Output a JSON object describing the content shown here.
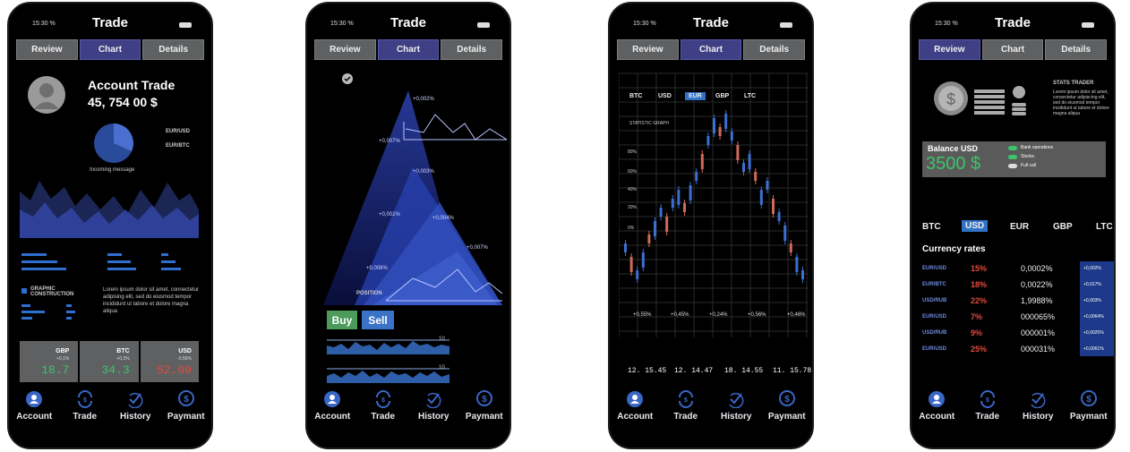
{
  "phones": [
    {
      "time": "15:30 %",
      "title": "Trade",
      "tabs": [
        "Review",
        "Chart",
        "Details"
      ],
      "account_title": "Account Trade",
      "account_value": "45, 754 00 $",
      "pairs": [
        "EUR/USD",
        "EUR/BTC"
      ],
      "incoming": "Incoming message",
      "graphic_label": "GRAPHIC CONSTRUCTION",
      "lorem": "Lorem ipsum dolor sit amet, connectetur adipising elit, sed do eiusmod tempor incididunt ut labore et dolore magna aliqua",
      "tickers": [
        {
          "name": "GBP",
          "change": "+0,1%",
          "value": "18.7",
          "color": "#3cc46a"
        },
        {
          "name": "BTC",
          "change": "+0,3%",
          "value": "34.3",
          "color": "#3cc46a"
        },
        {
          "name": "USD",
          "change": "-0,56%",
          "value": "52.00",
          "color": "#e24a3e"
        }
      ]
    },
    {
      "time": "15:30 %",
      "title": "Trade",
      "tabs": [
        "Review",
        "Chart",
        "Details"
      ],
      "peak_labels": [
        "+0,002%",
        "+0,007%",
        "+0,003%",
        "+0,002%",
        "+0,004%",
        "+0,007%",
        "+0,008%"
      ],
      "position_label": "POSITION",
      "buy": "Buy",
      "sell": "Sell",
      "mini_labels": [
        "10",
        "10"
      ]
    },
    {
      "time": "15:30 %",
      "title": "Trade",
      "tabs": [
        "Review",
        "Chart",
        "Details"
      ],
      "currencies": [
        "BTC",
        "USD",
        "EUR",
        "GBP",
        "LTC"
      ],
      "stat_label": "STATISTIC GRAPH",
      "y_labels": [
        "80%",
        "60%",
        "40%",
        "20%",
        "0%"
      ],
      "percents": [
        "+0,55%",
        "+0,45%",
        "+0,24%",
        "+0,56%",
        "+0,46%"
      ],
      "dates": [
        "12. 15.45",
        "12. 14.47",
        "18. 14.55",
        "11. 15.78"
      ]
    },
    {
      "time": "15:30 %",
      "title": "Trade",
      "tabs": [
        "Review",
        "Chart",
        "Details"
      ],
      "stats_trader": "STATS TRADER",
      "stats_text": "Lorem ipsum dolor sit amet, consectetur adipiscing elit, sed do eiusmod tempor incididunt ut labore et dolore magna aliqua",
      "balance_label": "Balance USD",
      "balance_value": "3500 $",
      "toggles": [
        "Bank operations",
        "Stocks",
        "Full call"
      ],
      "currencies": [
        "BTC",
        "USD",
        "EUR",
        "GBP",
        "LTC"
      ],
      "rates_title": "Currency rates",
      "rates": [
        {
          "pair": "EUR/USD",
          "pct": "15%",
          "value": "0,0002%",
          "change": "+0,002%"
        },
        {
          "pair": "EUR/BTC",
          "pct": "18%",
          "value": "0,0022%",
          "change": "+0,017%"
        },
        {
          "pair": "USD/RUB",
          "pct": "22%",
          "value": "1,9988%",
          "change": "+0,003%"
        },
        {
          "pair": "EUR/USD",
          "pct": "7%",
          "value": "000065%",
          "change": "+0,0064%"
        },
        {
          "pair": "USD/RUB",
          "pct": "9%",
          "value": "000001%",
          "change": "+0,0025%"
        },
        {
          "pair": "EUR/USD",
          "pct": "25%",
          "value": "000031%",
          "change": "+0,0061%"
        }
      ]
    }
  ],
  "nav": [
    "Account",
    "Trade",
    "History",
    "Paymant"
  ],
  "colors": {
    "accent": "#3f3f85",
    "blue": "#2f72c6",
    "green": "#3cc46a",
    "red": "#e24a3e"
  }
}
